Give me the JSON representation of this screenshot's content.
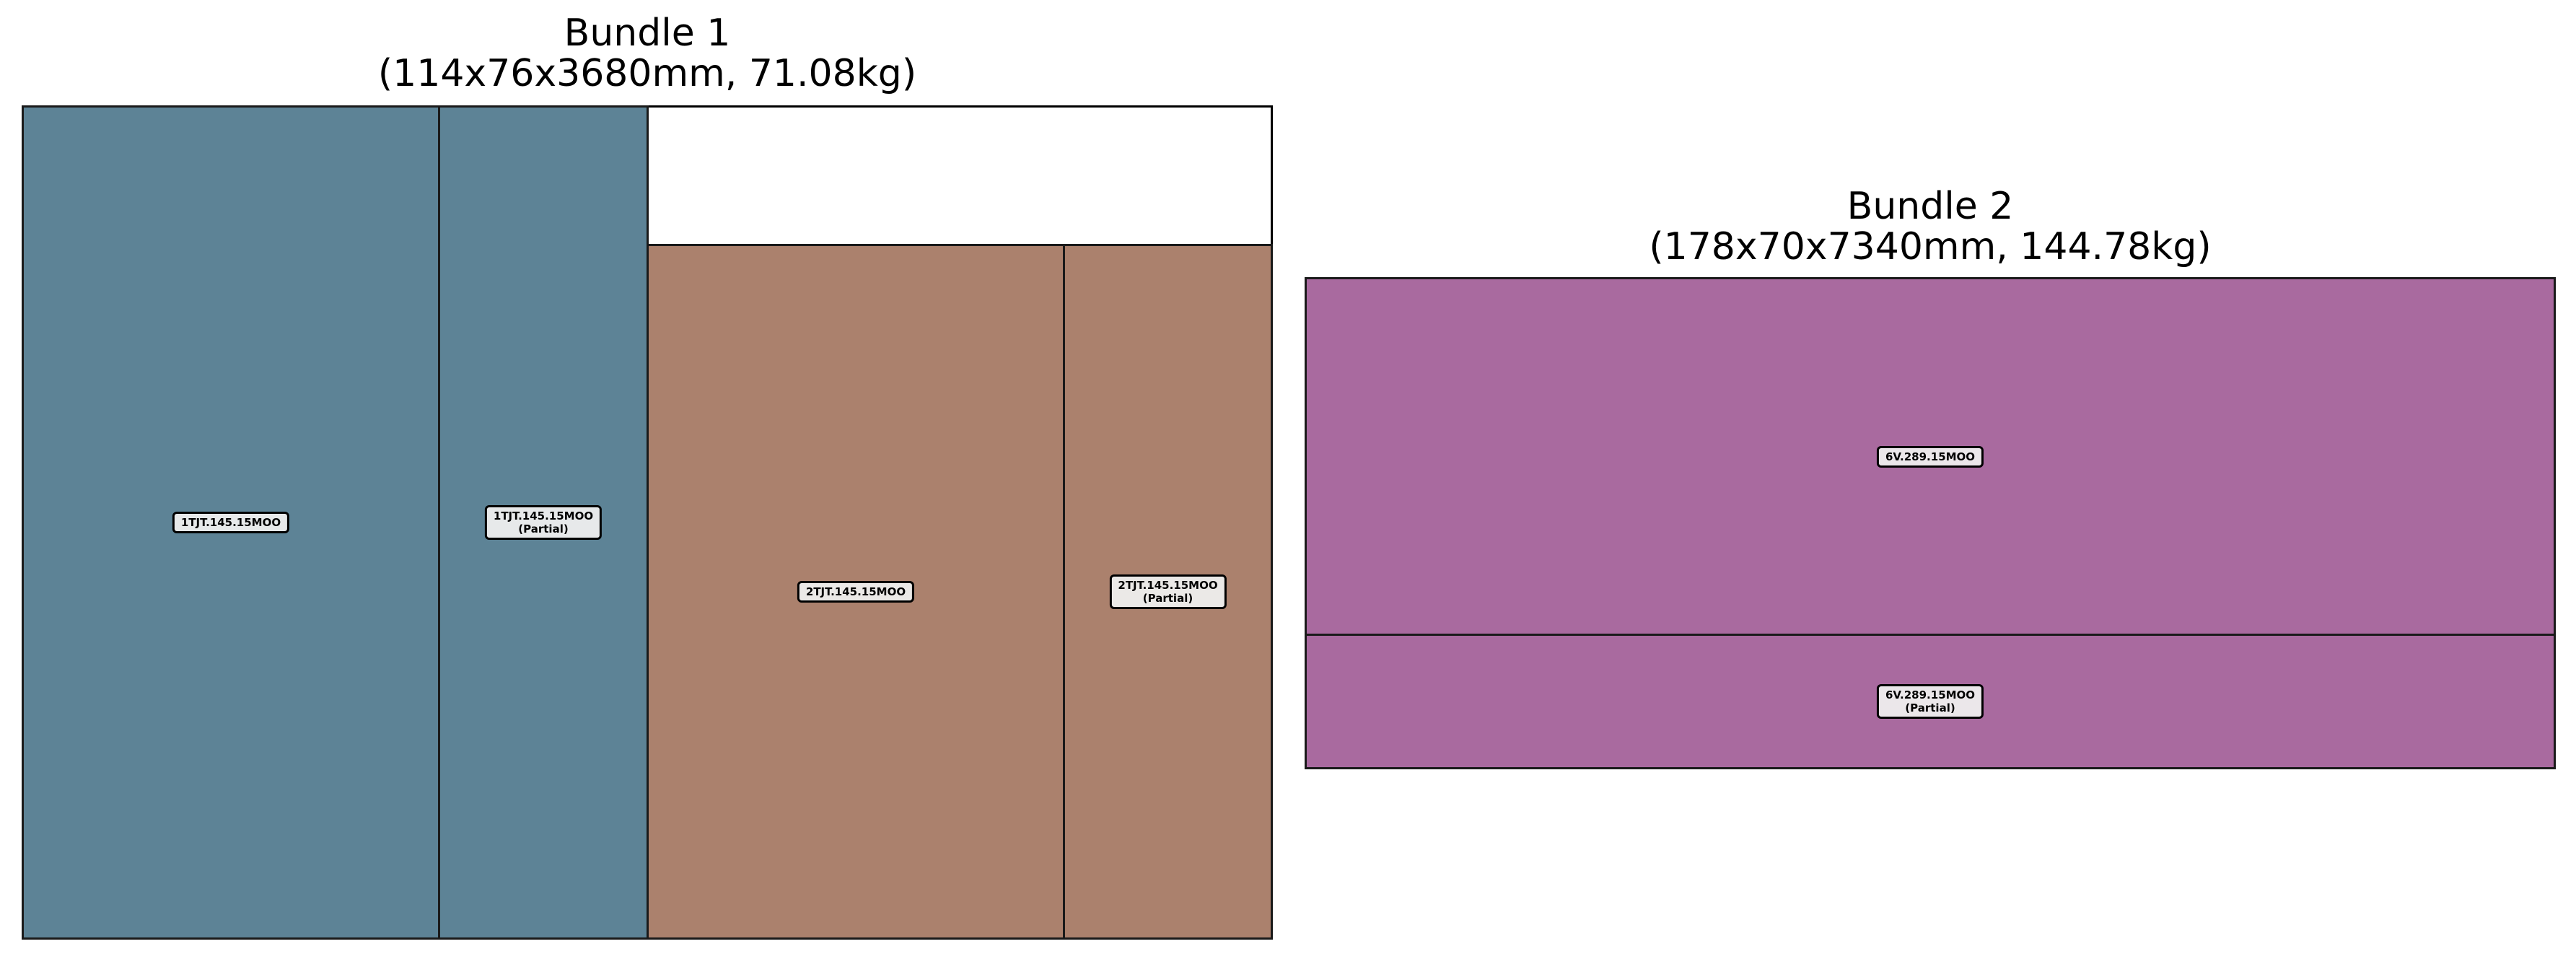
{
  "bundles": [
    {
      "title": "Bundle 1",
      "subtitle": "(114x76x3680mm, 71.08kg)",
      "pieces": [
        {
          "label": "1TJT.145.15MOO",
          "note": "",
          "color": "#5d8396"
        },
        {
          "label": "1TJT.145.15MOO",
          "note": "(Partial)",
          "color": "#5d8396"
        },
        {
          "label": "2TJT.145.15MOO",
          "note": "",
          "color": "#ab816d"
        },
        {
          "label": "2TJT.145.15MOO",
          "note": "(Partial)",
          "color": "#ab816d"
        }
      ]
    },
    {
      "title": "Bundle 2",
      "subtitle": "(178x70x7340mm, 144.78kg)",
      "pieces": [
        {
          "label": "6V.289.15MOO",
          "note": "",
          "color": "#a96a9f"
        },
        {
          "label": "6V.289.15MOO",
          "note": "(Partial)",
          "color": "#a96a9f"
        }
      ]
    }
  ]
}
